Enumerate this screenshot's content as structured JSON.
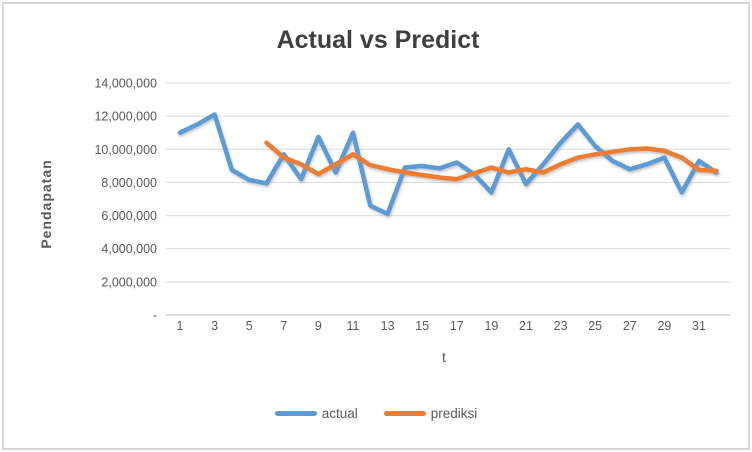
{
  "chart": {
    "title": "Actual vs Predict",
    "y_axis": {
      "title": "Pendapatan",
      "ticks": [
        {
          "value": 0,
          "label": "-"
        },
        {
          "value": 2000000,
          "label": "2,000,000"
        },
        {
          "value": 4000000,
          "label": "4,000,000"
        },
        {
          "value": 6000000,
          "label": "6,000,000"
        },
        {
          "value": 8000000,
          "label": "8,000,000"
        },
        {
          "value": 10000000,
          "label": "10,000,000"
        },
        {
          "value": 12000000,
          "label": "12,000,000"
        },
        {
          "value": 14000000,
          "label": "14,000,000"
        }
      ]
    },
    "x_axis": {
      "title": "t",
      "tick_labels": [
        "1",
        "3",
        "5",
        "7",
        "9",
        "11",
        "13",
        "15",
        "17",
        "19",
        "21",
        "23",
        "25",
        "27",
        "29",
        "31"
      ]
    },
    "legend": [
      {
        "name": "actual",
        "color": "#5B9BD5"
      },
      {
        "name": "prediksi",
        "color": "#ED7D31"
      }
    ],
    "colors": {
      "actual": "#5B9BD5",
      "prediksi": "#ED7D31",
      "gridline": "#D9D9D9",
      "axis_line": "#BFBFBF",
      "title_text": "#3F3F3F",
      "axis_text": "#595959"
    }
  },
  "chart_data": {
    "type": "line",
    "x": [
      1,
      2,
      3,
      4,
      5,
      6,
      7,
      8,
      9,
      10,
      11,
      12,
      13,
      14,
      15,
      16,
      17,
      18,
      19,
      20,
      21,
      22,
      23,
      24,
      25,
      26,
      27,
      28,
      29,
      30,
      31,
      32
    ],
    "series": [
      {
        "name": "actual",
        "values": [
          11000000,
          11500000,
          12100000,
          8750000,
          8150000,
          7950000,
          9700000,
          8200000,
          10750000,
          8600000,
          11000000,
          6600000,
          6100000,
          8900000,
          9000000,
          8850000,
          9200000,
          8500000,
          7400000,
          10000000,
          7900000,
          9100000,
          10400000,
          11500000,
          10200000,
          9300000,
          8800000,
          9100000,
          9500000,
          7400000,
          9300000,
          8600000
        ]
      },
      {
        "name": "prediksi",
        "values": [
          null,
          null,
          null,
          null,
          null,
          10400000,
          9500000,
          9100000,
          8500000,
          9100000,
          9700000,
          9050000,
          8800000,
          8600000,
          8450000,
          8300000,
          8200000,
          8550000,
          8900000,
          8600000,
          8800000,
          8600000,
          9100000,
          9500000,
          9700000,
          9850000,
          10000000,
          10050000,
          9900000,
          9500000,
          8750000,
          8700000
        ]
      }
    ],
    "title": "Actual vs Predict",
    "xlabel": "t",
    "ylabel": "Pendapatan",
    "ylim": [
      0,
      14000000
    ],
    "x_tick_labels_shown": [
      "1",
      "3",
      "5",
      "7",
      "9",
      "11",
      "13",
      "15",
      "17",
      "19",
      "21",
      "23",
      "25",
      "27",
      "29",
      "31"
    ],
    "grid": true,
    "legend_position": "bottom"
  }
}
